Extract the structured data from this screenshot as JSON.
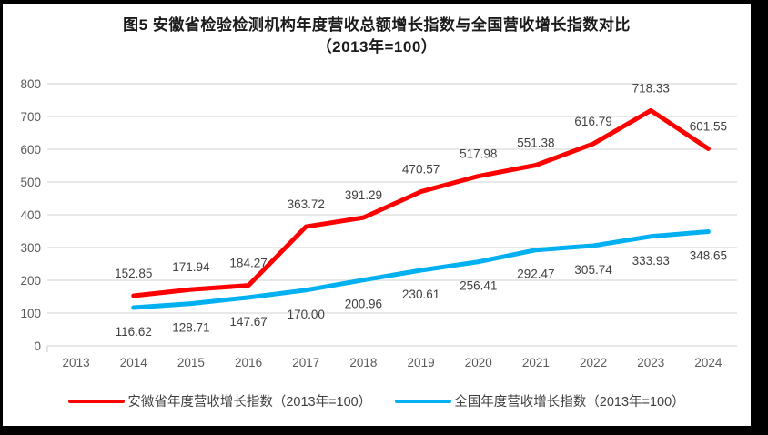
{
  "title": {
    "line1": "图5  安徽省检验检测机构年度营收总额增长指数与全国营收增长指数对比",
    "line2": "（2013年=100）"
  },
  "legend": {
    "anhui": "安徽省年度营收增长指数（2013年=100）",
    "national": "全国年度营收增长指数（2013年=100）"
  },
  "colors": {
    "anhui_line": "#ff0000",
    "national_line": "#00b0f0",
    "gridline": "#d9d9d9",
    "tick_label": "#595959",
    "data_label": "#404040"
  },
  "chart_data": {
    "type": "line",
    "title": "图5 安徽省检验检测机构年度营收总额增长指数与全国营收增长指数对比（2013年=100）",
    "categories": [
      "2013",
      "2014",
      "2015",
      "2016",
      "2017",
      "2018",
      "2019",
      "2020",
      "2021",
      "2022",
      "2023",
      "2024"
    ],
    "xlabel": "",
    "ylabel": "",
    "ylim": [
      0,
      800
    ],
    "ytick_step": 100,
    "yticks": [
      "0",
      "100",
      "200",
      "300",
      "400",
      "500",
      "600",
      "700",
      "800"
    ],
    "grid": true,
    "legend_position": "bottom",
    "series": [
      {
        "name": "安徽省年度营收增长指数（2013年=100）",
        "color": "#ff0000",
        "x": [
          "2014",
          "2015",
          "2016",
          "2017",
          "2018",
          "2019",
          "2020",
          "2021",
          "2022",
          "2023",
          "2024"
        ],
        "values": [
          152.85,
          171.94,
          184.27,
          363.72,
          391.29,
          470.57,
          517.98,
          551.38,
          616.79,
          718.33,
          601.55
        ],
        "labels": [
          "152.85",
          "171.94",
          "184.27",
          "363.72",
          "391.29",
          "470.57",
          "517.98",
          "551.38",
          "616.79",
          "718.33",
          "601.55"
        ],
        "label_position": "above"
      },
      {
        "name": "全国年度营收增长指数（2013年=100）",
        "color": "#00b0f0",
        "x": [
          "2014",
          "2015",
          "2016",
          "2017",
          "2018",
          "2019",
          "2020",
          "2021",
          "2022",
          "2023",
          "2024"
        ],
        "values": [
          116.62,
          128.71,
          147.67,
          170.0,
          200.96,
          230.61,
          256.41,
          292.47,
          305.74,
          333.93,
          348.65
        ],
        "labels": [
          "116.62",
          "128.71",
          "147.67",
          "170.00",
          "200.96",
          "230.61",
          "256.41",
          "292.47",
          "305.74",
          "333.93",
          "348.65"
        ],
        "label_position": "below"
      }
    ]
  }
}
